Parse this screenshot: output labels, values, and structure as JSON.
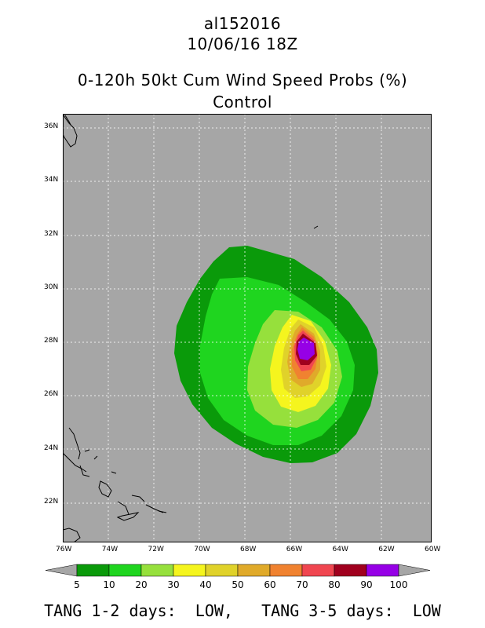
{
  "header": {
    "storm_id": "al152016",
    "datetime": "10/06/16 18Z",
    "product": "0-120h 50kt Cum Wind Speed Probs (%)",
    "run": "Control"
  },
  "map": {
    "lon_range": [
      -76,
      -60
    ],
    "lat_range": [
      20.5,
      36.5
    ],
    "lon_ticks": [
      "76W",
      "74W",
      "72W",
      "70W",
      "68W",
      "66W",
      "64W",
      "62W",
      "60W"
    ],
    "lat_ticks": [
      "22N",
      "24N",
      "26N",
      "28N",
      "30N",
      "32N",
      "34N",
      "36N"
    ],
    "background_color": "#a6a6a6",
    "probability_center": {
      "lon": -65.1,
      "lat": 27.6
    }
  },
  "colorbar": {
    "levels": [
      "5",
      "10",
      "20",
      "30",
      "40",
      "50",
      "60",
      "70",
      "80",
      "90",
      "100"
    ],
    "colors": [
      "#0a9a0a",
      "#1fd51f",
      "#96e03c",
      "#f5f51e",
      "#e0d22a",
      "#e0aa2a",
      "#f08230",
      "#f04650",
      "#a0001e",
      "#9600e6"
    ]
  },
  "footer": {
    "text": "TANG 1-2 days:  LOW,   TANG 3-5 days:  LOW"
  }
}
